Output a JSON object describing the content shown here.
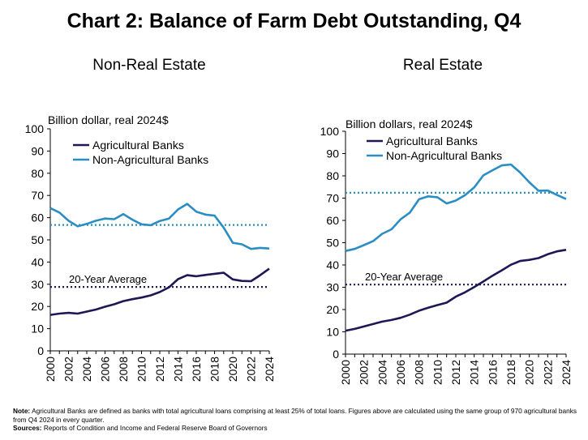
{
  "title": "Chart 2: Balance of Farm Debt Outstanding, Q4",
  "footnote": {
    "note_label": "Note:",
    "note_text": "Agricultural Banks are defined as banks with total agricultural loans comprising at least 25% of total loans. Figures above are calculated using the same group of 970 agricultural banks from Q4 2024 in every quarter.",
    "sources_label": "Sources:",
    "sources_text": "Reports of Condition and Income and Federal Reserve Board of Governors"
  },
  "colors": {
    "agricultural": "#1c1855",
    "non_agricultural": "#2a8ec4"
  },
  "chart_data": [
    {
      "type": "line",
      "title": "Non-Real Estate",
      "ylabel": "Billion dollar, real 2024$",
      "ylim": [
        0,
        100
      ],
      "yticks": [
        0,
        10,
        20,
        30,
        40,
        50,
        60,
        70,
        80,
        90,
        100
      ],
      "x": [
        2000,
        2001,
        2002,
        2003,
        2004,
        2005,
        2006,
        2007,
        2008,
        2009,
        2010,
        2011,
        2012,
        2013,
        2014,
        2015,
        2016,
        2017,
        2018,
        2019,
        2020,
        2021,
        2022,
        2023,
        2024
      ],
      "xticks": [
        "2000",
        "2002",
        "2004",
        "2006",
        "2008",
        "2010",
        "2012",
        "2014",
        "2016",
        "2018",
        "2020",
        "2022",
        "2024"
      ],
      "legend": "top-left",
      "series": [
        {
          "name": "Agricultural Banks",
          "values": [
            16.2,
            16.8,
            17.1,
            16.8,
            17.7,
            18.6,
            19.9,
            21,
            22.4,
            23.3,
            24,
            25,
            26.5,
            28.6,
            32.3,
            34.1,
            33.6,
            34.2,
            34.7,
            35.2,
            32.2,
            31.5,
            31.4,
            34.1,
            37
          ],
          "average": 28.8
        },
        {
          "name": "Non-Agricultural Banks",
          "values": [
            64.3,
            62.3,
            58.6,
            56.1,
            57.2,
            58.6,
            59.6,
            59.3,
            61.6,
            59.1,
            57,
            56.6,
            58.5,
            59.6,
            63.7,
            66.2,
            62.7,
            61.4,
            60.9,
            55.5,
            48.7,
            48,
            45.9,
            46.4,
            46.1
          ],
          "average": 56.7
        }
      ],
      "annotation": "20-Year Average"
    },
    {
      "type": "line",
      "title": "Real Estate",
      "ylabel": "Billion dollars, real 2024$",
      "ylim": [
        0,
        100
      ],
      "yticks": [
        0,
        10,
        20,
        30,
        40,
        50,
        60,
        70,
        80,
        90,
        100
      ],
      "x": [
        2000,
        2001,
        2002,
        2003,
        2004,
        2005,
        2006,
        2007,
        2008,
        2009,
        2010,
        2011,
        2012,
        2013,
        2014,
        2015,
        2016,
        2017,
        2018,
        2019,
        2020,
        2021,
        2022,
        2023,
        2024
      ],
      "xticks": [
        "2000",
        "2002",
        "2004",
        "2006",
        "2008",
        "2010",
        "2012",
        "2014",
        "2016",
        "2018",
        "2020",
        "2022",
        "2024"
      ],
      "legend": "top-left",
      "series": [
        {
          "name": "Agricultural Banks",
          "values": [
            10.5,
            11.3,
            12.4,
            13.5,
            14.6,
            15.3,
            16.3,
            17.7,
            19.5,
            20.8,
            22,
            23.1,
            25.8,
            27.7,
            30.1,
            32.6,
            35.2,
            37.6,
            40.1,
            41.8,
            42.3,
            43.1,
            44.8,
            46.1,
            46.8
          ],
          "average": 31.2
        },
        {
          "name": "Non-Agricultural Banks",
          "values": [
            46.3,
            47.2,
            48.9,
            50.7,
            54,
            56,
            60.5,
            63.5,
            69.5,
            70.8,
            70.4,
            67.6,
            68.9,
            71.3,
            74.8,
            80.2,
            82.5,
            84.7,
            85.1,
            81.5,
            77.1,
            73.3,
            73.4,
            71.4,
            69.6
          ],
          "average": 72.4
        }
      ],
      "annotation": "20-Year Average"
    }
  ]
}
